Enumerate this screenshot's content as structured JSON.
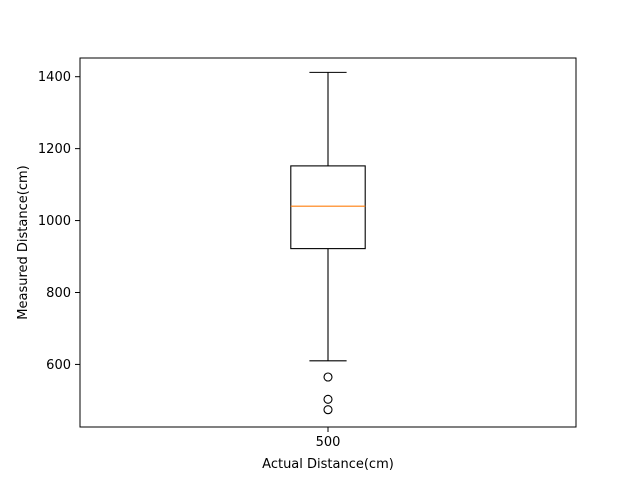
{
  "chart_data": {
    "type": "boxplot",
    "title": "",
    "xlabel": "Actual Distance(cm)",
    "ylabel": "Measured Distance(cm)",
    "categories": [
      "500"
    ],
    "boxes": [
      {
        "category": "500",
        "whisker_low": 610,
        "q1": 922,
        "median": 1040,
        "q3": 1152,
        "whisker_high": 1412,
        "outliers": [
          565,
          503,
          474
        ]
      }
    ],
    "ylim": [
      426,
      1452
    ],
    "yticks": [
      600,
      800,
      1000,
      1200,
      1400
    ],
    "grid": false,
    "colors": {
      "box": "#000000",
      "median": "#ff7f0e",
      "outlier_edge": "#000000"
    }
  }
}
